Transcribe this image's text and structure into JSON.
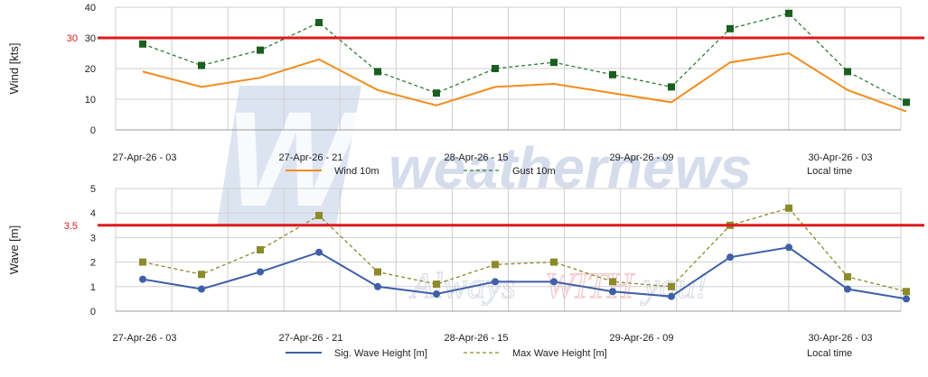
{
  "watermark": {
    "logo_text": "weathernews",
    "slogan_1": "Always ",
    "slogan_2": "WITH",
    "slogan_3": " you!"
  },
  "colors": {
    "wind": "#f28c1c",
    "gust": "#2e7d32",
    "gust_marker": "#1b5e20",
    "sig_wave": "#3f5fa8",
    "max_wave": "#8c8a2a",
    "max_wave_marker": "#8c8a2a",
    "threshold": "#e0191c"
  },
  "chart_data": [
    {
      "type": "line",
      "ylabel": "Wind [kts]",
      "ylim": [
        0,
        40
      ],
      "yticks": [
        0,
        10,
        20,
        30,
        40
      ],
      "grid": true,
      "x_tick_labels": [
        "27-Apr-26 - 03",
        "27-Apr-26 - 21",
        "28-Apr-26 - 15",
        "29-Apr-26 - 09",
        "30-Apr-26 - 03"
      ],
      "threshold": {
        "value": 30,
        "label": "30"
      },
      "series": [
        {
          "name": "Wind 10m",
          "style": "solid",
          "values": [
            19,
            14,
            17,
            23,
            13,
            8,
            14,
            15,
            12,
            9,
            22,
            25,
            13,
            6
          ]
        },
        {
          "name": "Gust 10m",
          "style": "dashed",
          "values": [
            28,
            21,
            26,
            35,
            19,
            12,
            20,
            22,
            18,
            14,
            33,
            38,
            19,
            9
          ]
        }
      ],
      "legend_extra": "Local time",
      "legend_position": "bottom"
    },
    {
      "type": "line",
      "ylabel": "Wave [m]",
      "ylim": [
        0,
        5
      ],
      "yticks": [
        0,
        1,
        2,
        3,
        4,
        5
      ],
      "grid": true,
      "x_tick_labels": [
        "27-Apr-26 - 03",
        "27-Apr-26 - 21",
        "28-Apr-26 - 15",
        "29-Apr-26 - 09",
        "30-Apr-26 - 03"
      ],
      "threshold": {
        "value": 3.5,
        "label": "3.5"
      },
      "series": [
        {
          "name": "Sig. Wave Height [m]",
          "style": "solid",
          "values": [
            1.3,
            0.9,
            1.6,
            2.4,
            1.0,
            0.7,
            1.2,
            1.2,
            0.8,
            0.6,
            2.2,
            2.6,
            0.9,
            0.5
          ]
        },
        {
          "name": "Max Wave Height [m]",
          "style": "dashed",
          "values": [
            2.0,
            1.5,
            2.5,
            3.9,
            1.6,
            1.1,
            1.9,
            2.0,
            1.2,
            1.0,
            3.5,
            4.2,
            1.4,
            0.8
          ]
        }
      ],
      "legend_extra": "Local time",
      "legend_position": "bottom"
    }
  ]
}
